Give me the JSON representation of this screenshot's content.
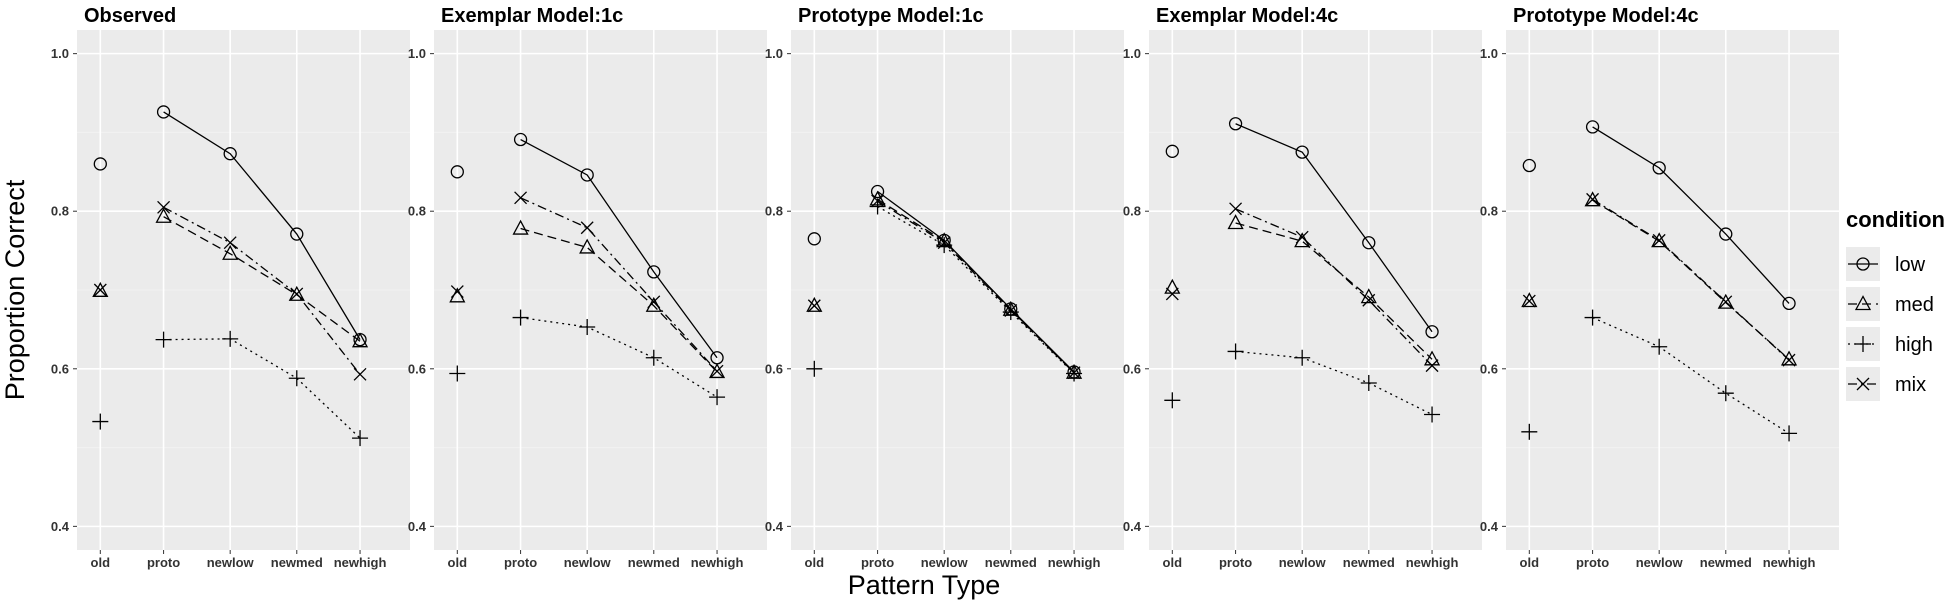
{
  "chart_data": {
    "type": "line",
    "ylabel": "Proportion Correct",
    "xlabel": "Pattern Type",
    "categories": [
      "old",
      "proto",
      "newlow",
      "newmed",
      "newhigh"
    ],
    "ylim": [
      0.37,
      1.03
    ],
    "yticks": [
      0.4,
      0.6,
      0.8,
      1.0
    ],
    "ytick_labels": [
      "0.4",
      "0.6",
      "0.8",
      "1.0"
    ],
    "grid": true,
    "note": "The 'old' point is plotted as an isolated marker; lines connect proto through newhigh.",
    "legend": {
      "title": "condition",
      "position": "right",
      "entries": [
        {
          "name": "low",
          "marker": "circle",
          "linestyle": "solid"
        },
        {
          "name": "med",
          "marker": "triangle",
          "linestyle": "dashed"
        },
        {
          "name": "high",
          "marker": "plus",
          "linestyle": "dotted"
        },
        {
          "name": "mix",
          "marker": "cross",
          "linestyle": "dashdot"
        }
      ]
    },
    "panels": [
      {
        "title": "Observed",
        "series": [
          {
            "name": "low",
            "values": [
              0.86,
              0.926,
              0.873,
              0.771,
              0.637
            ]
          },
          {
            "name": "med",
            "values": [
              0.699,
              0.793,
              0.746,
              0.694,
              0.635
            ]
          },
          {
            "name": "high",
            "values": [
              0.533,
              0.637,
              0.638,
              0.588,
              0.512
            ]
          },
          {
            "name": "mix",
            "values": [
              0.7,
              0.805,
              0.76,
              0.695,
              0.593
            ]
          }
        ]
      },
      {
        "title": "Exemplar Model:1c",
        "series": [
          {
            "name": "low",
            "values": [
              0.85,
              0.891,
              0.846,
              0.723,
              0.614
            ]
          },
          {
            "name": "med",
            "values": [
              0.692,
              0.778,
              0.754,
              0.68,
              0.596
            ]
          },
          {
            "name": "high",
            "values": [
              0.594,
              0.665,
              0.653,
              0.614,
              0.564
            ]
          },
          {
            "name": "mix",
            "values": [
              0.698,
              0.817,
              0.779,
              0.685,
              0.597
            ]
          }
        ]
      },
      {
        "title": "Prototype Model:1c",
        "series": [
          {
            "name": "low",
            "values": [
              0.765,
              0.825,
              0.763,
              0.676,
              0.596
            ]
          },
          {
            "name": "med",
            "values": [
              0.68,
              0.815,
              0.762,
              0.675,
              0.595
            ]
          },
          {
            "name": "high",
            "values": [
              0.6,
              0.806,
              0.757,
              0.672,
              0.594
            ]
          },
          {
            "name": "mix",
            "values": [
              0.68,
              0.813,
              0.76,
              0.674,
              0.595
            ]
          }
        ]
      },
      {
        "title": "Exemplar Model:4c",
        "series": [
          {
            "name": "low",
            "values": [
              0.876,
              0.911,
              0.875,
              0.76,
              0.647
            ]
          },
          {
            "name": "med",
            "values": [
              0.703,
              0.785,
              0.762,
              0.691,
              0.612
            ]
          },
          {
            "name": "high",
            "values": [
              0.56,
              0.622,
              0.614,
              0.582,
              0.542
            ]
          },
          {
            "name": "mix",
            "values": [
              0.695,
              0.803,
              0.767,
              0.687,
              0.604
            ]
          }
        ]
      },
      {
        "title": "Prototype Model:4c",
        "series": [
          {
            "name": "low",
            "values": [
              0.858,
              0.907,
              0.855,
              0.771,
              0.683
            ]
          },
          {
            "name": "med",
            "values": [
              0.686,
              0.814,
              0.762,
              0.684,
              0.612
            ]
          },
          {
            "name": "high",
            "values": [
              0.52,
              0.665,
              0.628,
              0.569,
              0.518
            ]
          },
          {
            "name": "mix",
            "values": [
              0.686,
              0.815,
              0.763,
              0.685,
              0.611
            ]
          }
        ]
      }
    ]
  },
  "colors": {
    "panel_background": "#ebebeb",
    "grid_major": "#ffffff",
    "grid_minor": "#f2f2f2",
    "marks": "#000000",
    "legend_key_background": "#ebebeb"
  }
}
